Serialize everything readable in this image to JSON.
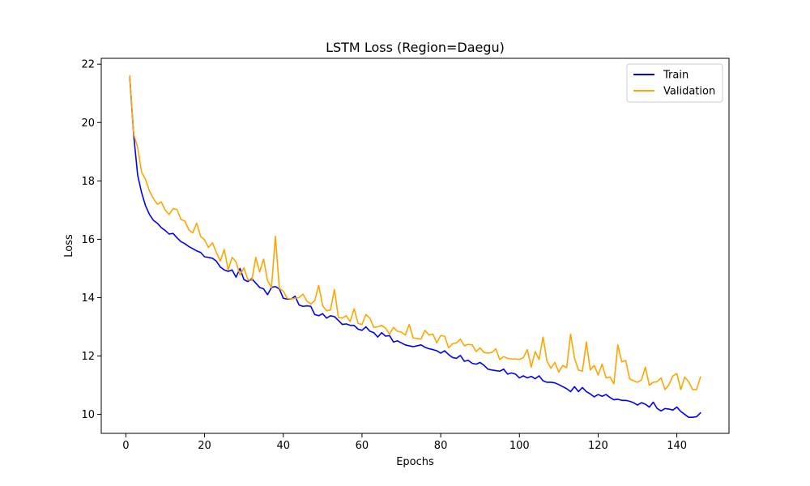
{
  "chart_data": {
    "type": "line",
    "title": "LSTM Loss (Region=Daegu)",
    "xlabel": "Epochs",
    "ylabel": "Loss",
    "xlim": [
      -6.25,
      153.25
    ],
    "ylim": [
      9.35,
      22.2
    ],
    "xticks": [
      0,
      20,
      40,
      60,
      80,
      100,
      120,
      140
    ],
    "yticks": [
      10,
      12,
      14,
      16,
      18,
      20,
      22
    ],
    "grid": false,
    "legend_position": "top-right",
    "series": [
      {
        "name": "Train",
        "color": "#0000ff",
        "x": [
          1,
          2,
          3,
          4,
          5,
          6,
          7,
          8,
          9,
          10,
          11,
          12,
          13,
          14,
          15,
          16,
          17,
          18,
          19,
          20,
          21,
          22,
          23,
          24,
          25,
          26,
          27,
          28,
          29,
          30,
          31,
          32,
          33,
          34,
          35,
          36,
          37,
          38,
          39,
          40,
          41,
          42,
          43,
          44,
          45,
          46,
          47,
          48,
          49,
          50,
          51,
          52,
          53,
          54,
          55,
          56,
          57,
          58,
          59,
          60,
          61,
          62,
          63,
          64,
          65,
          66,
          67,
          68,
          69,
          70,
          71,
          72,
          73,
          74,
          75,
          76,
          77,
          78,
          79,
          80,
          81,
          82,
          83,
          84,
          85,
          86,
          87,
          88,
          89,
          90,
          91,
          92,
          93,
          94,
          95,
          96,
          97,
          98,
          99,
          100,
          101,
          102,
          103,
          104,
          105,
          106,
          107,
          108,
          109,
          110,
          111,
          112,
          113,
          114,
          115,
          116,
          117,
          118,
          119,
          120,
          121,
          122,
          123,
          124,
          125,
          126,
          127,
          128,
          129,
          130,
          131,
          132,
          133,
          134,
          135,
          136,
          137,
          138,
          139,
          140,
          141,
          142,
          143,
          144,
          145,
          146
        ],
        "values": [
          21.55,
          19.55,
          18.2,
          17.6,
          17.15,
          16.85,
          16.65,
          16.55,
          16.4,
          16.3,
          16.18,
          16.2,
          16.05,
          15.92,
          15.85,
          15.75,
          15.68,
          15.6,
          15.55,
          15.4,
          15.38,
          15.35,
          15.25,
          15.05,
          14.95,
          14.9,
          14.95,
          14.7,
          15.0,
          14.62,
          14.55,
          14.65,
          14.5,
          14.35,
          14.3,
          14.1,
          14.35,
          14.38,
          14.3,
          13.98,
          13.95,
          13.95,
          14.05,
          13.75,
          13.7,
          13.72,
          13.7,
          13.42,
          13.38,
          13.45,
          13.3,
          13.38,
          13.35,
          13.22,
          13.08,
          13.1,
          13.05,
          13.05,
          12.92,
          12.88,
          13.0,
          12.85,
          12.8,
          12.65,
          12.8,
          12.68,
          12.7,
          12.48,
          12.52,
          12.45,
          12.38,
          12.35,
          12.32,
          12.35,
          12.38,
          12.3,
          12.25,
          12.22,
          12.18,
          12.1,
          12.18,
          12.05,
          11.95,
          11.92,
          12.02,
          11.82,
          11.85,
          11.75,
          11.72,
          11.78,
          11.68,
          11.55,
          11.52,
          11.5,
          11.48,
          11.55,
          11.38,
          11.42,
          11.38,
          11.25,
          11.32,
          11.25,
          11.3,
          11.22,
          11.32,
          11.15,
          11.1,
          11.1,
          11.08,
          11.02,
          10.95,
          10.88,
          10.78,
          10.95,
          10.78,
          10.92,
          10.78,
          10.7,
          10.6,
          10.68,
          10.62,
          10.68,
          10.58,
          10.5,
          10.52,
          10.48,
          10.48,
          10.45,
          10.4,
          10.32,
          10.4,
          10.35,
          10.25,
          10.42,
          10.2,
          10.12,
          10.2,
          10.18,
          10.15,
          10.25,
          10.1,
          10.0,
          9.9,
          9.9,
          9.92,
          10.05
        ]
      },
      {
        "name": "Validation",
        "color": "#ffa500",
        "x": [
          1,
          2,
          3,
          4,
          5,
          6,
          7,
          8,
          9,
          10,
          11,
          12,
          13,
          14,
          15,
          16,
          17,
          18,
          19,
          20,
          21,
          22,
          23,
          24,
          25,
          26,
          27,
          28,
          29,
          30,
          31,
          32,
          33,
          34,
          35,
          36,
          37,
          38,
          39,
          40,
          41,
          42,
          43,
          44,
          45,
          46,
          47,
          48,
          49,
          50,
          51,
          52,
          53,
          54,
          55,
          56,
          57,
          58,
          59,
          60,
          61,
          62,
          63,
          64,
          65,
          66,
          67,
          68,
          69,
          70,
          71,
          72,
          73,
          74,
          75,
          76,
          77,
          78,
          79,
          80,
          81,
          82,
          83,
          84,
          85,
          86,
          87,
          88,
          89,
          90,
          91,
          92,
          93,
          94,
          95,
          96,
          97,
          98,
          99,
          100,
          101,
          102,
          103,
          104,
          105,
          106,
          107,
          108,
          109,
          110,
          111,
          112,
          113,
          114,
          115,
          116,
          117,
          118,
          119,
          120,
          121,
          122,
          123,
          124,
          125,
          126,
          127,
          128,
          129,
          130,
          131,
          132,
          133,
          134,
          135,
          136,
          137,
          138,
          139,
          140,
          141,
          142,
          143,
          144,
          145,
          146
        ],
        "values": [
          21.6,
          19.6,
          19.15,
          18.3,
          18.05,
          17.65,
          17.4,
          17.2,
          17.28,
          17.0,
          16.85,
          17.05,
          17.02,
          16.68,
          16.62,
          16.32,
          16.22,
          16.55,
          16.1,
          15.98,
          15.72,
          15.88,
          15.55,
          15.25,
          15.65,
          14.95,
          15.38,
          15.22,
          14.78,
          15.02,
          14.62,
          14.58,
          15.38,
          14.88,
          15.32,
          14.58,
          14.35,
          16.1,
          14.32,
          14.22,
          13.98,
          13.95,
          13.98,
          14.0,
          14.12,
          13.88,
          13.78,
          13.9,
          14.42,
          13.72,
          13.55,
          13.58,
          14.28,
          13.32,
          13.3,
          13.38,
          13.18,
          13.62,
          13.12,
          13.08,
          13.42,
          13.3,
          12.98,
          13.0,
          13.05,
          12.95,
          12.75,
          12.98,
          12.85,
          12.82,
          12.72,
          13.08,
          12.62,
          12.6,
          12.58,
          12.88,
          12.72,
          12.75,
          12.45,
          12.7,
          12.68,
          12.28,
          12.42,
          12.45,
          12.58,
          12.35,
          12.4,
          12.38,
          12.15,
          12.28,
          12.12,
          12.1,
          12.12,
          12.25,
          11.88,
          11.98,
          11.92,
          11.9,
          11.9,
          11.88,
          11.95,
          12.22,
          11.62,
          12.15,
          11.88,
          12.65,
          11.82,
          11.58,
          11.78,
          11.45,
          11.68,
          11.6,
          12.75,
          11.92,
          11.52,
          11.48,
          12.48,
          11.52,
          11.68,
          11.35,
          11.72,
          11.25,
          11.28,
          11.05,
          12.38,
          11.8,
          11.85,
          11.22,
          11.15,
          11.1,
          11.18,
          11.62,
          11.0,
          11.1,
          11.12,
          11.25,
          10.85,
          11.02,
          11.32,
          11.4,
          10.85,
          11.28,
          11.12,
          10.85,
          10.85,
          11.28
        ]
      }
    ]
  }
}
